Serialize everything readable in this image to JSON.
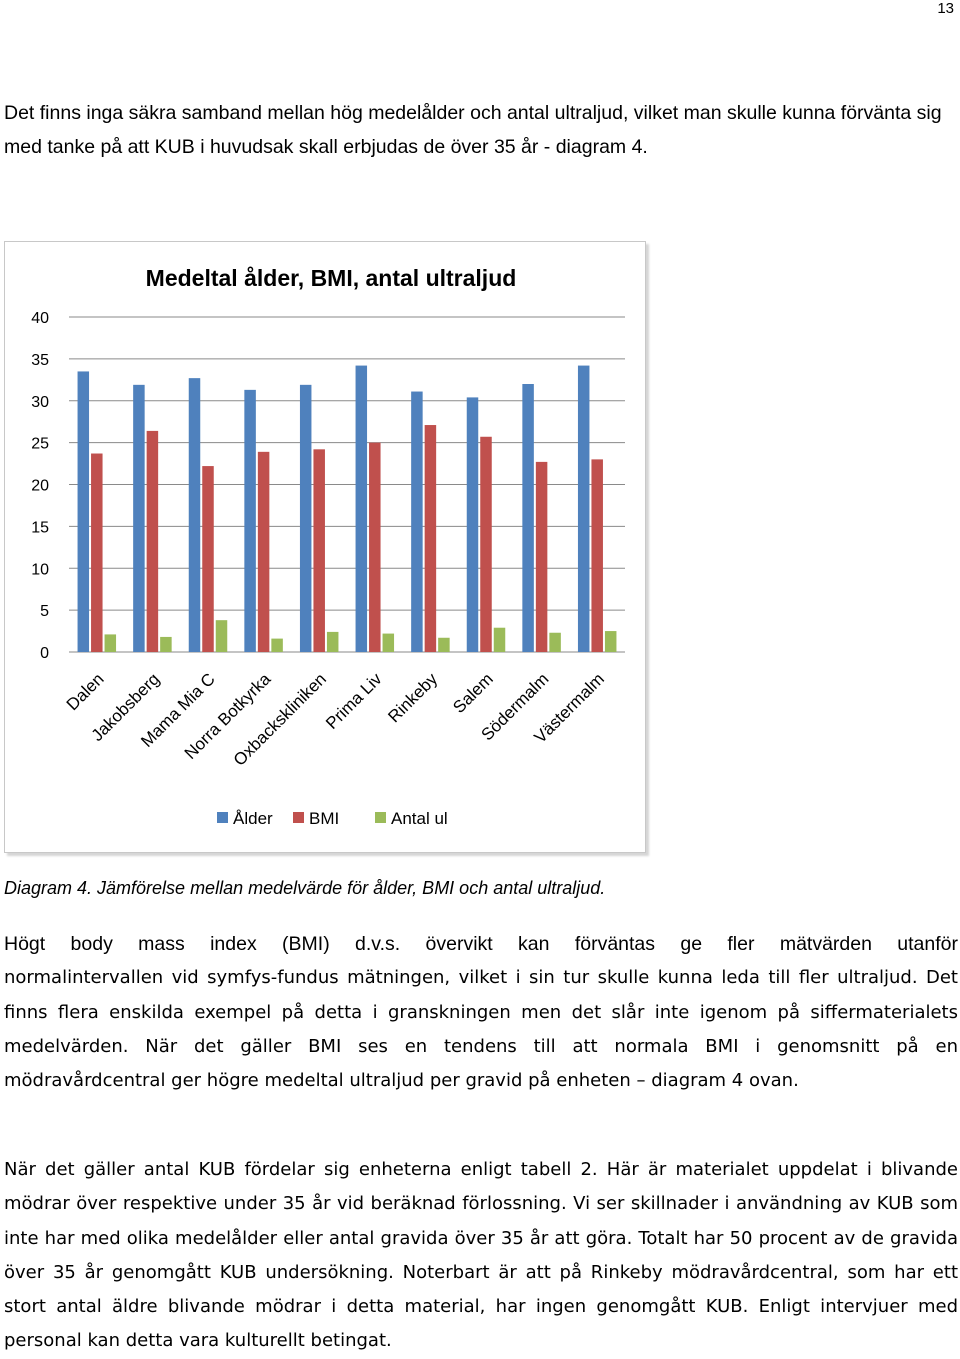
{
  "page": {
    "number": "13"
  },
  "intro_text": "Det finns inga säkra samband mellan hög medelålder och antal ultraljud, vilket man skulle kunna förvänta sig med tanke på att KUB i huvudsak skall erbjudas de över 35 år - diagram 4.",
  "caption": "Diagram 4. Jämförelse mellan medelvärde för ålder, BMI och antal ultraljud.",
  "paragraphs": {
    "p1_lead": "Högt body mass index (BMI) d.v.s. övervikt kan förväntas ge fler mätvärden utanför",
    "p1_rest": "normalintervallen vid symfys-fundus mätningen, vilket i sin tur skulle kunna leda till fler ultraljud. Det finns flera enskilda exempel på detta i granskningen men det slår inte igenom på siffermaterialets medelvärden. När det gäller BMI ses en tendens till att normala BMI i genomsnitt på en mödravårdcentral ger högre medeltal ultraljud per gravid på enheten – diagram 4 ovan.",
    "p2": "När det gäller antal KUB fördelar sig enheterna enligt tabell 2. Här är materialet uppdelat i blivande mödrar över respektive under 35 år vid beräknad förlossning. Vi ser skillnader i användning av KUB som inte har med olika medelålder eller antal gravida över 35 år att göra. Totalt har 50 procent av de gravida över 35 år genomgått KUB undersökning. Noterbart är att på Rinkeby mödravårdcentral, som har ett stort antal äldre blivande mödrar i detta material, har ingen genomgått KUB. Enligt intervjuer med personal kan detta vara kulturellt betingat."
  },
  "colors": {
    "alder": "#4f81bd",
    "bmi": "#c0504d",
    "antal": "#9bbb59",
    "grid": "#8a8a8a",
    "text": "#000000"
  },
  "chart_data": {
    "type": "bar",
    "title": "Medeltal ålder, BMI, antal ultraljud",
    "xlabel": "",
    "ylabel": "",
    "ylim": [
      0,
      40
    ],
    "yticks": [
      0,
      5,
      10,
      15,
      20,
      25,
      30,
      35,
      40
    ],
    "grid": true,
    "legend": "bottom",
    "categories": [
      "Dalen",
      "Jakobsberg",
      "Mama Mia C",
      "Norra Botkyrka",
      "Oxbackskliniken",
      "Prima Liv",
      "Rinkeby",
      "Salem",
      "Södermalm",
      "Västermalm"
    ],
    "series": [
      {
        "name": "Ålder",
        "color_key": "alder",
        "values": [
          33.5,
          31.9,
          32.7,
          31.3,
          31.9,
          34.2,
          31.1,
          30.4,
          32.0,
          34.2
        ]
      },
      {
        "name": "BMI",
        "color_key": "bmi",
        "values": [
          23.7,
          26.4,
          22.2,
          23.9,
          24.2,
          25.0,
          27.1,
          25.7,
          22.7,
          23.0
        ]
      },
      {
        "name": "Antal ul",
        "color_key": "antal",
        "values": [
          2.1,
          1.8,
          3.8,
          1.6,
          2.4,
          2.2,
          1.7,
          2.9,
          2.3,
          2.5
        ]
      }
    ]
  }
}
